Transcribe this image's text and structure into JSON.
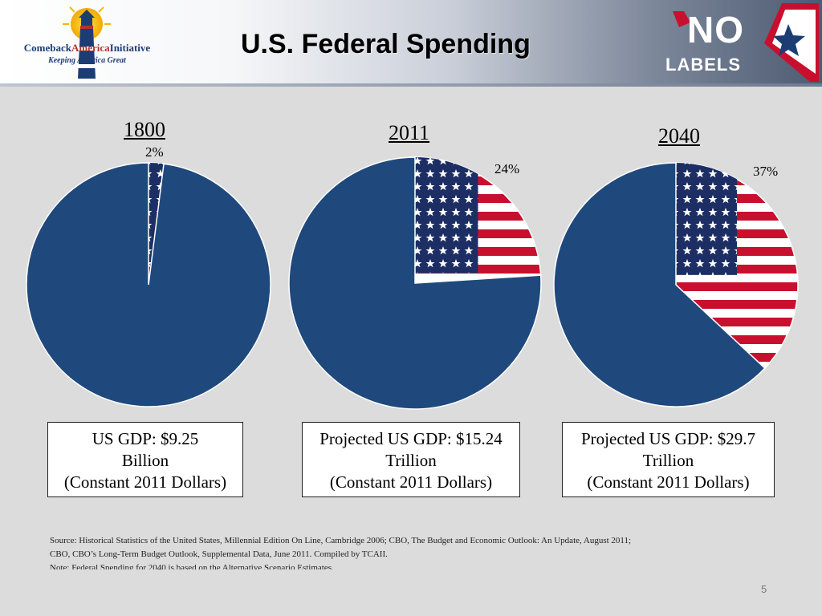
{
  "slide": {
    "title": "U.S. Federal Spending",
    "page_number": "5",
    "logo_left": {
      "name_part1": "Comeback",
      "name_part2": "America",
      "name_part3": "Initiative",
      "tagline": "Keeping America Great"
    },
    "logo_right": {
      "line1": "NO",
      "line2": "LABELS"
    },
    "source_lines": [
      "Source: Historical Statistics of the United States, Millennial  Edition On Line,  Cambridge 2006; CBO, The Budget and Economic Outlook: An Update, August 2011;",
      "CBO, CBO’s Long-Term Budget Outlook, Supplemental Data, June 2011.   Compiled by TCAII.",
      "Note: Federal Spending for 2040 is based on the Alternative  Scenario Estimates."
    ],
    "colors": {
      "pie_fill": "#1f497d",
      "flag_red": "#c8102e",
      "flag_blue": "#1c2e63",
      "background": "#dcdcdc"
    }
  },
  "chart_data": [
    {
      "type": "pie",
      "title": "1800",
      "slices": [
        {
          "label": "2%",
          "value": 2,
          "fill": "flag"
        },
        {
          "value": 98,
          "fill": "#1f497d"
        }
      ],
      "caption": [
        "US GDP: $9.25",
        "Billion",
        "(Constant 2011 Dollars)"
      ]
    },
    {
      "type": "pie",
      "title": "2011",
      "slices": [
        {
          "label": "24%",
          "value": 24,
          "fill": "flag"
        },
        {
          "value": 76,
          "fill": "#1f497d"
        }
      ],
      "caption": [
        "Projected  US GDP: $15.24",
        "Trillion",
        "(Constant 2011 Dollars)"
      ]
    },
    {
      "type": "pie",
      "title": "2040",
      "slices": [
        {
          "label": "37%",
          "value": 37,
          "fill": "flag"
        },
        {
          "value": 63,
          "fill": "#1f497d"
        }
      ],
      "caption": [
        "Projected  US GDP: $29.7",
        "Trillion",
        "(Constant 2011 Dollars)"
      ]
    }
  ]
}
